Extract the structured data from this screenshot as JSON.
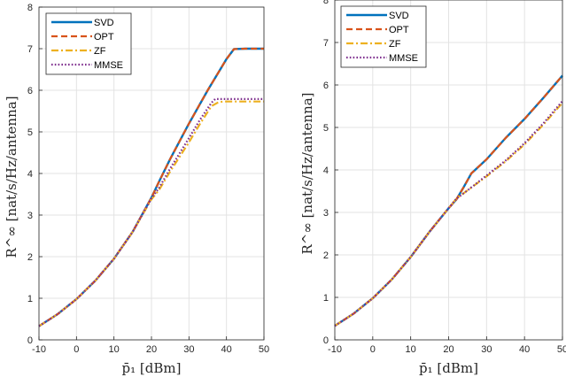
{
  "chart_data": [
    {
      "type": "line",
      "xlabel": "p̄₁ [dBm]",
      "ylabel": "R^∞ [nat/s/Hz/antenna]",
      "xlim": [
        -10,
        50
      ],
      "ylim": [
        0,
        8
      ],
      "xticks": [
        "-10",
        "0",
        "10",
        "20",
        "30",
        "40",
        "50"
      ],
      "yticks": [
        "0",
        "1",
        "2",
        "3",
        "4",
        "5",
        "6",
        "7",
        "8"
      ],
      "grid": true,
      "legend": "top-left",
      "series": [
        {
          "name": "SVD",
          "color": "#0072BD",
          "style": "solid",
          "x": [
            -10,
            -5,
            0,
            5,
            10,
            15,
            20,
            22,
            25,
            30,
            35,
            40,
            42,
            45,
            50
          ],
          "y": [
            0.33,
            0.62,
            0.98,
            1.42,
            1.95,
            2.6,
            3.42,
            3.8,
            4.35,
            5.2,
            6.0,
            6.75,
            6.99,
            7.0,
            7.0
          ]
        },
        {
          "name": "OPT",
          "color": "#D95319",
          "style": "dashed",
          "x": [
            -10,
            -5,
            0,
            5,
            10,
            15,
            20,
            22,
            25,
            30,
            35,
            40,
            42,
            45,
            50
          ],
          "y": [
            0.33,
            0.62,
            0.98,
            1.42,
            1.95,
            2.6,
            3.42,
            3.8,
            4.35,
            5.2,
            6.0,
            6.75,
            6.99,
            7.0,
            7.0
          ]
        },
        {
          "name": "ZF",
          "color": "#EDB120",
          "style": "dashdot",
          "x": [
            -10,
            -5,
            0,
            5,
            10,
            15,
            20,
            22,
            25,
            30,
            33,
            36,
            38,
            40,
            45,
            50
          ],
          "y": [
            0.33,
            0.62,
            0.98,
            1.42,
            1.95,
            2.6,
            3.38,
            3.6,
            4.05,
            4.75,
            5.2,
            5.62,
            5.72,
            5.73,
            5.73,
            5.73
          ]
        },
        {
          "name": "MMSE",
          "color": "#7E2F8E",
          "style": "dotted",
          "x": [
            -10,
            -5,
            0,
            5,
            10,
            15,
            20,
            22,
            25,
            30,
            33,
            36,
            37,
            40,
            45,
            50
          ],
          "y": [
            0.33,
            0.62,
            0.98,
            1.42,
            1.95,
            2.6,
            3.4,
            3.65,
            4.12,
            4.85,
            5.3,
            5.7,
            5.79,
            5.79,
            5.79,
            5.79
          ]
        }
      ]
    },
    {
      "type": "line",
      "xlabel": "p̄₁ [dBm]",
      "ylabel": "R^∞ [nat/s/Hz/antenna]",
      "xlim": [
        -10,
        50
      ],
      "ylim": [
        0,
        8
      ],
      "xticks": [
        "-10",
        "0",
        "10",
        "20",
        "30",
        "40",
        "50"
      ],
      "yticks": [
        "0",
        "1",
        "2",
        "3",
        "4",
        "5",
        "6",
        "7",
        "8"
      ],
      "grid": true,
      "legend": "top-left",
      "series": [
        {
          "name": "SVD",
          "color": "#0072BD",
          "style": "solid",
          "x": [
            -10,
            -5,
            0,
            5,
            10,
            15,
            20,
            22,
            24,
            26,
            30,
            35,
            40,
            45,
            50
          ],
          "y": [
            0.33,
            0.62,
            0.98,
            1.42,
            1.95,
            2.55,
            3.1,
            3.3,
            3.6,
            3.92,
            4.25,
            4.75,
            5.2,
            5.7,
            6.22
          ]
        },
        {
          "name": "OPT",
          "color": "#D95319",
          "style": "dashed",
          "x": [
            -10,
            -5,
            0,
            5,
            10,
            15,
            20,
            22,
            24,
            26,
            30,
            35,
            40,
            45,
            50
          ],
          "y": [
            0.33,
            0.62,
            0.98,
            1.42,
            1.95,
            2.55,
            3.1,
            3.3,
            3.6,
            3.92,
            4.25,
            4.75,
            5.2,
            5.7,
            6.22
          ]
        },
        {
          "name": "ZF",
          "color": "#EDB120",
          "style": "dashdot",
          "x": [
            -10,
            -5,
            0,
            5,
            10,
            15,
            20,
            22,
            25,
            30,
            35,
            40,
            45,
            50
          ],
          "y": [
            0.33,
            0.62,
            0.98,
            1.42,
            1.95,
            2.55,
            3.1,
            3.32,
            3.52,
            3.85,
            4.2,
            4.6,
            5.07,
            5.58
          ]
        },
        {
          "name": "MMSE",
          "color": "#7E2F8E",
          "style": "dotted",
          "x": [
            -10,
            -5,
            0,
            5,
            10,
            15,
            20,
            22,
            25,
            30,
            35,
            40,
            45,
            50
          ],
          "y": [
            0.33,
            0.62,
            0.98,
            1.42,
            1.95,
            2.55,
            3.1,
            3.32,
            3.52,
            3.87,
            4.22,
            4.63,
            5.1,
            5.62
          ]
        }
      ]
    }
  ]
}
